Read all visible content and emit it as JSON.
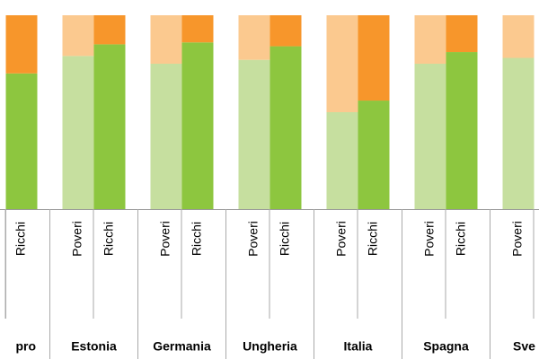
{
  "chart_data": {
    "type": "stacked-bar",
    "categories": [
      "Ricchi",
      "Poveri",
      "Ricchi",
      "Poveri",
      "Ricchi",
      "Poveri",
      "Ricchi",
      "Poveri",
      "Ricchi",
      "Poveri",
      "Ricchi",
      "Poveri"
    ],
    "groups": [
      "pro",
      "Estonia",
      "Germania",
      "Ungheria",
      "Italia",
      "Spagna",
      "Sve"
    ],
    "ylim": [
      0,
      100
    ],
    "series": [
      {
        "colors": [
          "#8dc63f",
          "#c6df9f",
          "#8dc63f",
          "#c6df9f",
          "#8dc63f",
          "#c6df9f",
          "#8dc63f",
          "#c6df9f",
          "#8dc63f",
          "#c6df9f",
          "#8dc63f",
          "#c6df9f"
        ],
        "values": [
          70,
          79,
          85,
          75,
          86,
          77,
          84,
          50,
          56,
          75,
          81,
          78
        ]
      },
      {
        "colors": [
          "#f7962b",
          "#fbc98f",
          "#f7962b",
          "#fbc98f",
          "#f7962b",
          "#fbc98f",
          "#f7962b",
          "#fbc98f",
          "#f7962b",
          "#fbc98f",
          "#f7962b",
          "#fbc98f"
        ],
        "values": [
          30,
          21,
          15,
          25,
          14,
          23,
          16,
          50,
          44,
          25,
          19,
          22
        ]
      }
    ]
  }
}
